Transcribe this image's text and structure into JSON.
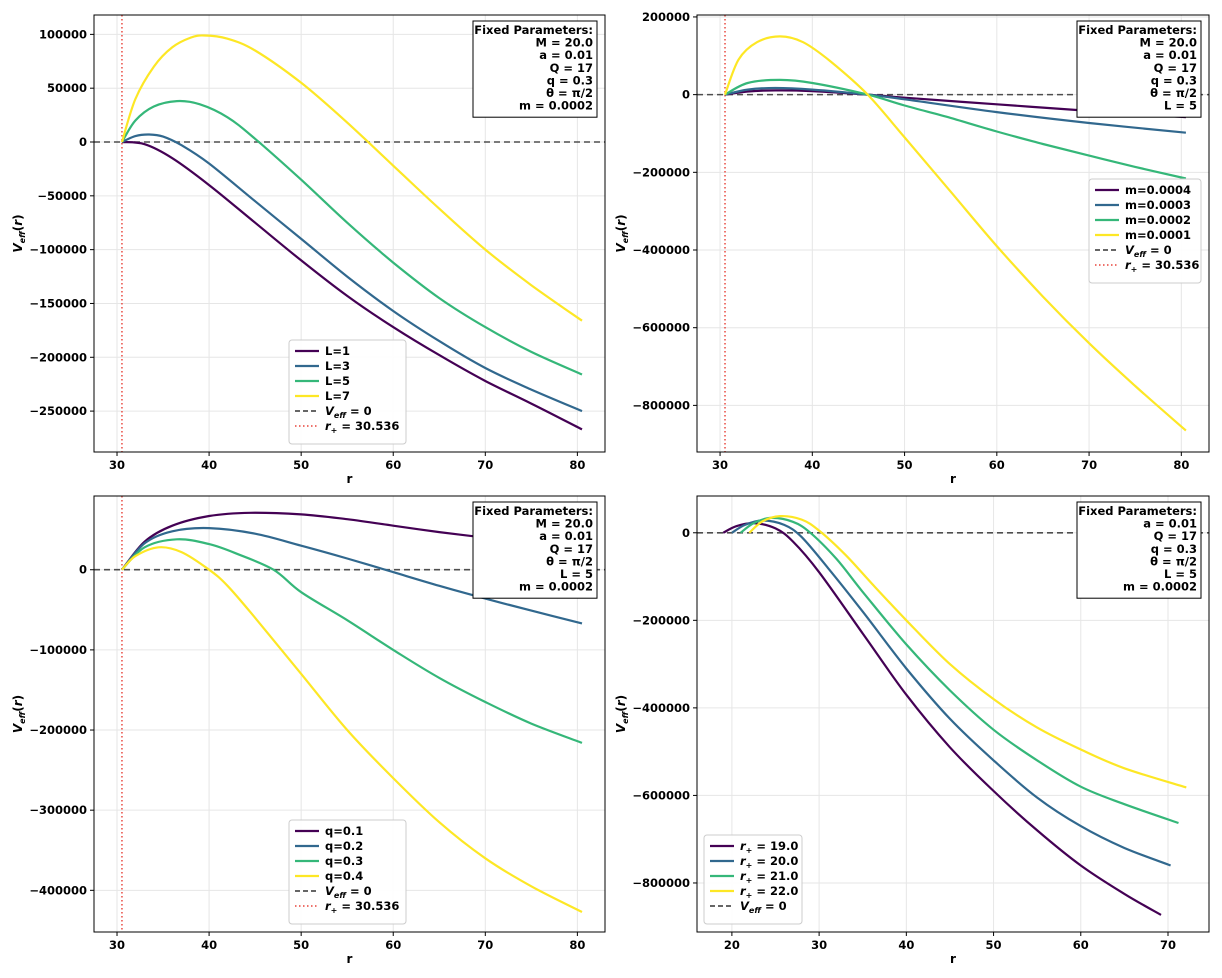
{
  "chart_data": [
    {
      "type": "line",
      "xlabel": "r",
      "ylabel": "V_eff(r)",
      "xlim": [
        27.5,
        83.0
      ],
      "ylim": [
        -288000,
        118000
      ],
      "xticks": [
        30,
        40,
        50,
        60,
        70,
        80
      ],
      "yticks": [
        -250000,
        -200000,
        -150000,
        -100000,
        -50000,
        0,
        50000,
        100000
      ],
      "ytick_labels": [
        "−250000",
        "−200000",
        "−150000",
        "−100000",
        "−50000",
        "0",
        "50000",
        "100000"
      ],
      "grid": true,
      "legend_position": "lower-center",
      "horizon": 30.536,
      "params_title": "Fixed Parameters:",
      "params": [
        "M = 20.0",
        "a = 0.01",
        "Q = 17",
        "q = 0.3",
        "θ = π/2",
        "m = 0.0002"
      ],
      "series": [
        {
          "name": "L=1",
          "color": "#440154",
          "x": [
            30.536,
            33,
            36,
            40,
            45,
            50,
            55,
            60,
            65,
            70,
            75,
            80.5
          ],
          "y": [
            0,
            -2000,
            -15000,
            -40000,
            -75000,
            -110000,
            -143000,
            -172000,
            -198000,
            -222000,
            -243000,
            -267000
          ]
        },
        {
          "name": "L=3",
          "color": "#31688e",
          "x": [
            30.536,
            32,
            33.5,
            35,
            37,
            40,
            45,
            50,
            55,
            60,
            65,
            70,
            75,
            80.5
          ],
          "y": [
            0,
            5500,
            7000,
            5000,
            -3000,
            -20000,
            -55000,
            -90000,
            -125000,
            -157000,
            -185000,
            -210000,
            -230000,
            -250000
          ]
        },
        {
          "name": "L=5",
          "color": "#35b779",
          "x": [
            30.536,
            32,
            34,
            36.5,
            39,
            42,
            45,
            50,
            55,
            60,
            65,
            70,
            75,
            80.5
          ],
          "y": [
            0,
            20000,
            33000,
            38000,
            35000,
            23000,
            3000,
            -35000,
            -75000,
            -112000,
            -145000,
            -172000,
            -195000,
            -216000
          ]
        },
        {
          "name": "L=7",
          "color": "#fde725",
          "x": [
            30.536,
            32,
            34,
            36,
            38,
            39.5,
            42,
            45,
            50,
            55,
            60,
            65,
            70,
            75,
            80.5
          ],
          "y": [
            0,
            40000,
            70000,
            88000,
            97000,
            99000,
            96000,
            85000,
            55000,
            18000,
            -22000,
            -62000,
            -100000,
            -133000,
            -166000
          ]
        }
      ],
      "reference_lines": [
        {
          "name": "V_eff = 0",
          "color": "#333333",
          "style": "dashed"
        },
        {
          "name": "r₊ = 30.536",
          "color": "#e8433a",
          "style": "dotted"
        }
      ]
    },
    {
      "type": "line",
      "xlabel": "r",
      "ylabel": "V_eff(r)",
      "xlim": [
        27.5,
        83.0
      ],
      "ylim": [
        -920000,
        205000
      ],
      "xticks": [
        30,
        40,
        50,
        60,
        70,
        80
      ],
      "yticks": [
        -800000,
        -600000,
        -400000,
        -200000,
        0,
        200000
      ],
      "ytick_labels": [
        "−800000",
        "−600000",
        "−400000",
        "−200000",
        "0",
        "200000"
      ],
      "grid": true,
      "legend_position": "center-right",
      "horizon": 30.536,
      "params_title": "Fixed Parameters:",
      "params": [
        "M = 20.0",
        "a = 0.01",
        "Q = 17",
        "q = 0.3",
        "θ = π/2",
        "L = 5"
      ],
      "series": [
        {
          "name": "m=0.0004",
          "color": "#440154",
          "x": [
            30.536,
            33,
            36,
            40,
            46,
            50,
            60,
            70,
            80.5
          ],
          "y": [
            0,
            8000,
            11000,
            9000,
            0,
            -8000,
            -25000,
            -42000,
            -58000
          ]
        },
        {
          "name": "m=0.0003",
          "color": "#31688e",
          "x": [
            30.536,
            33,
            36,
            40,
            46,
            50,
            60,
            70,
            80.5
          ],
          "y": [
            0,
            13000,
            17000,
            13000,
            0,
            -12000,
            -45000,
            -73000,
            -98000
          ]
        },
        {
          "name": "m=0.0002",
          "color": "#35b779",
          "x": [
            30.536,
            33,
            36.5,
            40,
            46,
            50,
            55,
            60,
            65,
            70,
            75,
            80.5
          ],
          "y": [
            0,
            30000,
            38000,
            30000,
            0,
            -28000,
            -60000,
            -95000,
            -127000,
            -157000,
            -186000,
            -216000
          ]
        },
        {
          "name": "m=0.0001",
          "color": "#fde725",
          "x": [
            30.536,
            32,
            34,
            36.5,
            39,
            42,
            46,
            50,
            55,
            60,
            65,
            70,
            75,
            80.5
          ],
          "y": [
            0,
            90000,
            135000,
            150000,
            135000,
            85000,
            0,
            -110000,
            -250000,
            -390000,
            -520000,
            -640000,
            -750000,
            -865000
          ]
        }
      ],
      "reference_lines": [
        {
          "name": "V_eff = 0",
          "color": "#333333",
          "style": "dashed"
        },
        {
          "name": "r₊ = 30.536",
          "color": "#e8433a",
          "style": "dotted"
        }
      ]
    },
    {
      "type": "line",
      "xlabel": "r",
      "ylabel": "V_eff(r)",
      "xlim": [
        27.5,
        83.0
      ],
      "ylim": [
        -452000,
        92000
      ],
      "xticks": [
        30,
        40,
        50,
        60,
        70,
        80
      ],
      "yticks": [
        -400000,
        -300000,
        -200000,
        -100000,
        0
      ],
      "ytick_labels": [
        "−400000",
        "−300000",
        "−200000",
        "−100000",
        "0"
      ],
      "grid": true,
      "legend_position": "lower-center",
      "horizon": 30.536,
      "params_title": "Fixed Parameters:",
      "params": [
        "M = 20.0",
        "a = 0.01",
        "Q = 17",
        "θ = π/2",
        "L = 5",
        "m = 0.0002"
      ],
      "series": [
        {
          "name": "q=0.1",
          "color": "#440154",
          "x": [
            30.536,
            33,
            36,
            40,
            44.5,
            50,
            55,
            60,
            65,
            70,
            75,
            80.5
          ],
          "y": [
            0,
            35000,
            55000,
            67000,
            71000,
            69000,
            63000,
            55000,
            47000,
            40000,
            33000,
            27000
          ]
        },
        {
          "name": "q=0.2",
          "color": "#31688e",
          "x": [
            30.536,
            33,
            36,
            40,
            45,
            50,
            55,
            60,
            65,
            70,
            75,
            80.5
          ],
          "y": [
            0,
            33000,
            48000,
            52000,
            45000,
            30000,
            14000,
            -3000,
            -20000,
            -36000,
            -51000,
            -67000
          ]
        },
        {
          "name": "q=0.3",
          "color": "#35b779",
          "x": [
            30.536,
            33,
            36.5,
            40,
            43,
            47,
            50,
            55,
            60,
            65,
            70,
            75,
            80.5
          ],
          "y": [
            0,
            28000,
            38000,
            32000,
            20000,
            0,
            -28000,
            -63000,
            -100000,
            -135000,
            -165000,
            -192000,
            -216000
          ]
        },
        {
          "name": "q=0.4",
          "color": "#fde725",
          "x": [
            30.536,
            32,
            34.5,
            37,
            40,
            42,
            45,
            50,
            55,
            60,
            65,
            70,
            75,
            80.5
          ],
          "y": [
            0,
            17000,
            28000,
            22000,
            0,
            -20000,
            -60000,
            -130000,
            -200000,
            -260000,
            -315000,
            -360000,
            -395000,
            -427000
          ]
        }
      ],
      "reference_lines": [
        {
          "name": "V_eff = 0",
          "color": "#333333",
          "style": "dashed"
        },
        {
          "name": "r₊ = 30.536",
          "color": "#e8433a",
          "style": "dotted"
        }
      ]
    },
    {
      "type": "line",
      "xlabel": "r",
      "ylabel": "V_eff(r)",
      "xlim": [
        16.0,
        74.7
      ],
      "ylim": [
        -912000,
        84000
      ],
      "xticks": [
        20,
        30,
        40,
        50,
        60,
        70
      ],
      "yticks": [
        -800000,
        -600000,
        -400000,
        -200000,
        0
      ],
      "ytick_labels": [
        "−800000",
        "−600000",
        "−400000",
        "−200000",
        "0"
      ],
      "grid": true,
      "legend_position": "lower-left",
      "params_title": "Fixed Parameters:",
      "params": [
        "a = 0.01",
        "Q = 17",
        "q = 0.3",
        "θ = π/2",
        "L = 5",
        "m = 0.0002"
      ],
      "series": [
        {
          "name": "r₊ = 19.0",
          "color": "#440154",
          "x": [
            19,
            20.5,
            22.5,
            25,
            27,
            30,
            35,
            40,
            45,
            50,
            55,
            60,
            65,
            69.2
          ],
          "y": [
            0,
            15000,
            22000,
            10000,
            -20000,
            -90000,
            -230000,
            -370000,
            -490000,
            -590000,
            -680000,
            -760000,
            -825000,
            -873000
          ]
        },
        {
          "name": "r₊ = 20.0",
          "color": "#31688e",
          "x": [
            20,
            21.5,
            23.5,
            26,
            28,
            31,
            35,
            40,
            45,
            50,
            55,
            60,
            65,
            70.3
          ],
          "y": [
            0,
            18000,
            28000,
            18000,
            -10000,
            -80000,
            -180000,
            -310000,
            -425000,
            -520000,
            -605000,
            -670000,
            -720000,
            -760000
          ]
        },
        {
          "name": "r₊ = 21.0",
          "color": "#35b779",
          "x": [
            21,
            22.5,
            24.5,
            27,
            29,
            32,
            35,
            40,
            45,
            50,
            55,
            60,
            65,
            71.2
          ],
          "y": [
            0,
            22000,
            34000,
            25000,
            0,
            -60000,
            -135000,
            -255000,
            -360000,
            -450000,
            -520000,
            -580000,
            -620000,
            -663000
          ]
        },
        {
          "name": "r₊ = 22.0",
          "color": "#fde725",
          "x": [
            22,
            23.5,
            25.5,
            28,
            30,
            33,
            36,
            40,
            45,
            50,
            55,
            60,
            65,
            72.1
          ],
          "y": [
            0,
            26000,
            38000,
            30000,
            5000,
            -50000,
            -115000,
            -200000,
            -300000,
            -380000,
            -445000,
            -495000,
            -538000,
            -582000
          ]
        }
      ],
      "reference_lines": [
        {
          "name": "V_eff = 0",
          "color": "#333333",
          "style": "dashed"
        }
      ]
    }
  ]
}
